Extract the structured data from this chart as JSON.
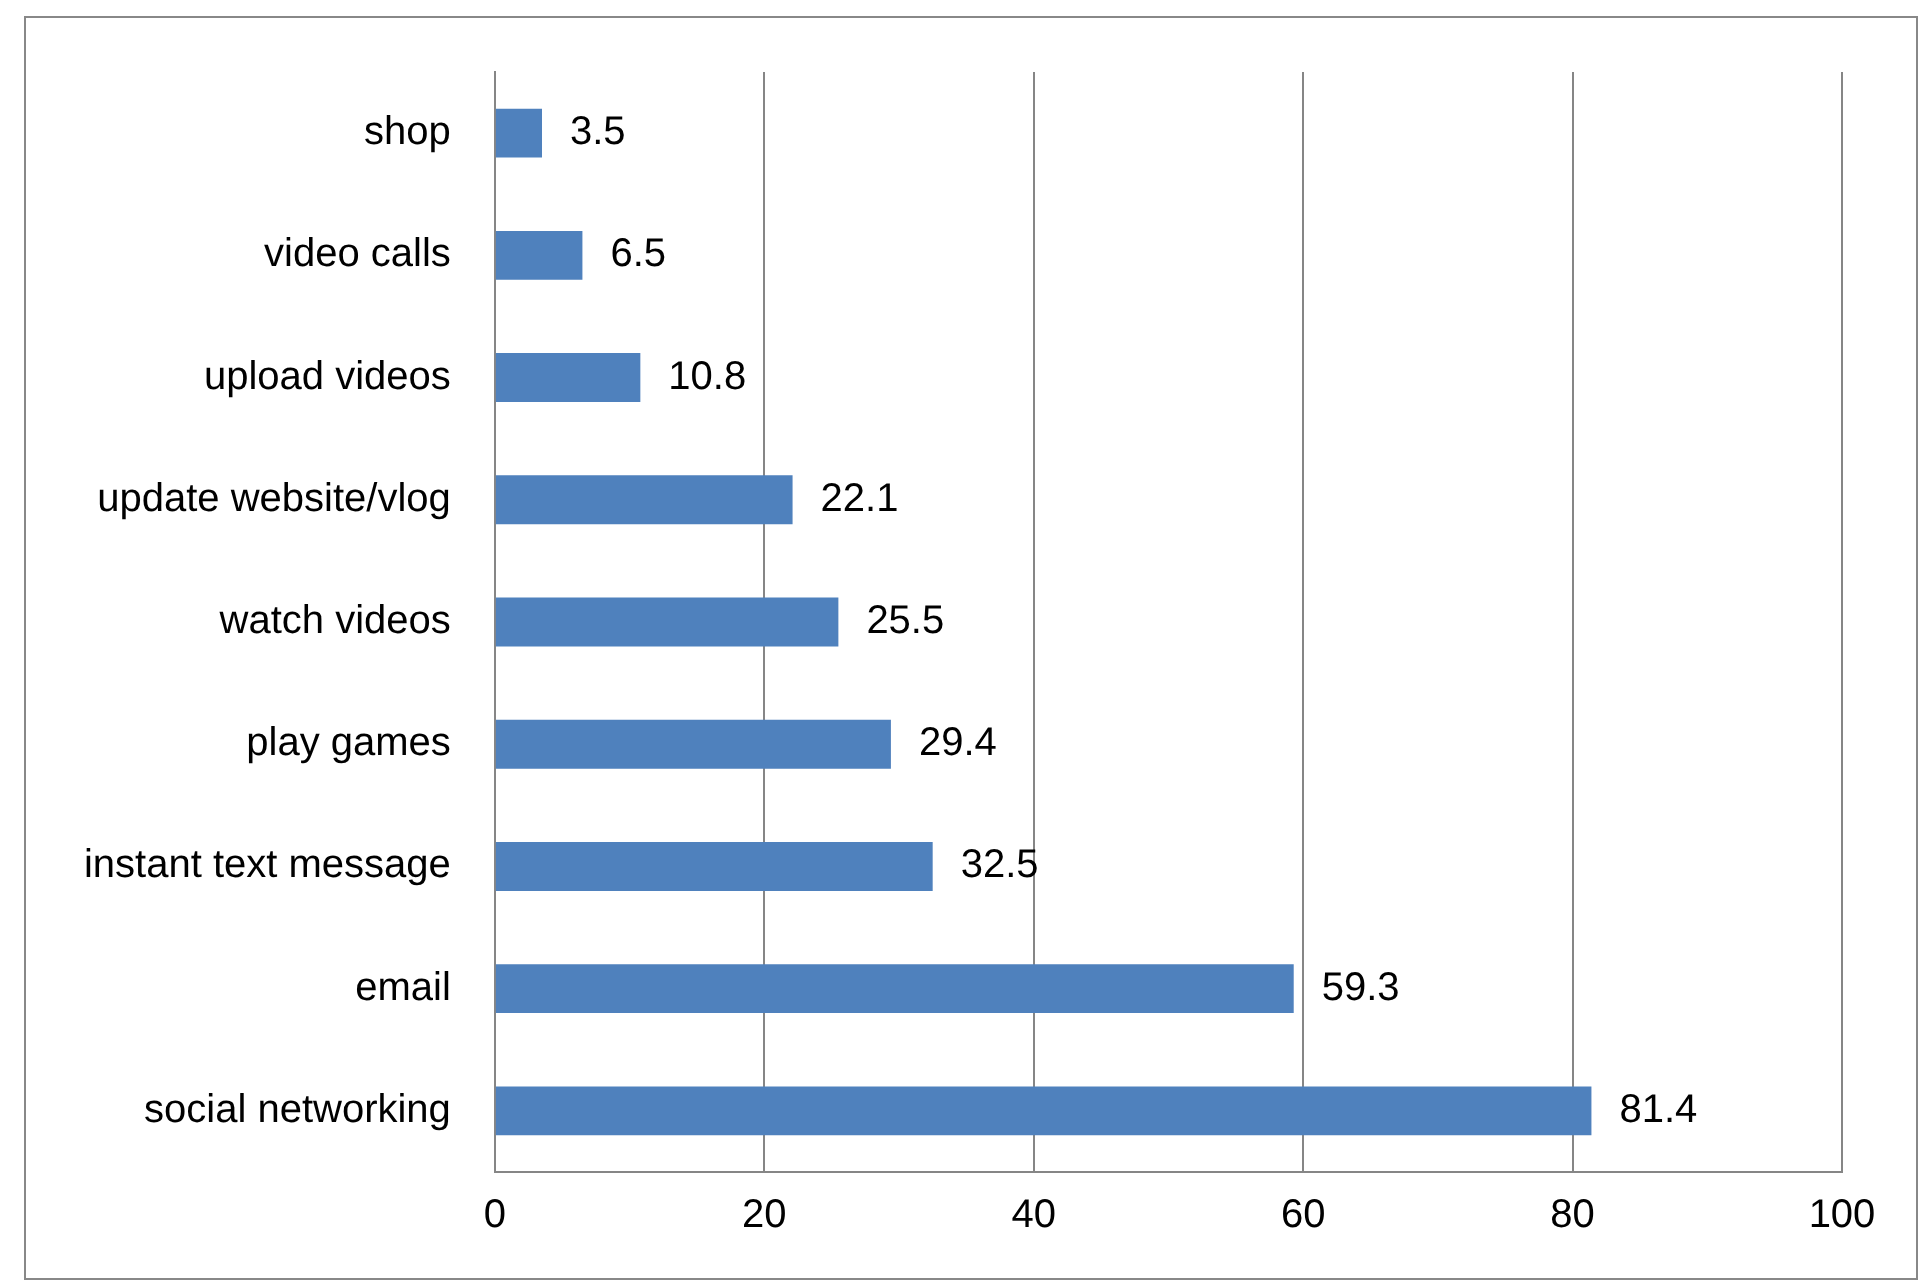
{
  "chart_data": {
    "type": "bar",
    "orientation": "horizontal",
    "categories": [
      "shop",
      "video calls",
      "upload videos",
      "update website/vlog",
      "watch videos",
      "play games",
      "instant text message",
      "email",
      "social networking"
    ],
    "values": [
      3.5,
      6.5,
      10.8,
      22.1,
      25.5,
      29.4,
      32.5,
      59.3,
      81.4
    ],
    "color": "#4f81bd",
    "xlim": [
      0,
      100
    ],
    "xticks": [
      0,
      20,
      40,
      60,
      80,
      100
    ],
    "grid": "x",
    "data_labels": true,
    "legend": false
  }
}
